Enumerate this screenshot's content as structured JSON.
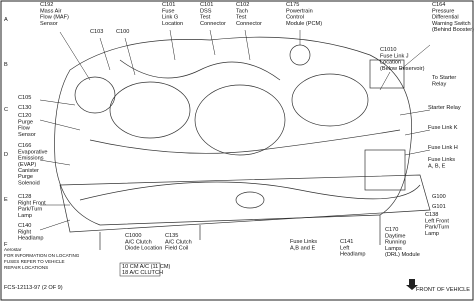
{
  "labels": [
    {
      "lines": [
        "C192",
        "Mass Air",
        "Flow (MAF)",
        "Sensor"
      ]
    },
    {
      "lines": [
        "C103"
      ]
    },
    {
      "lines": [
        "C100"
      ]
    },
    {
      "lines": [
        "C101",
        "Fuse",
        "Link G",
        "Location"
      ]
    },
    {
      "lines": [
        "C101",
        "DSS",
        "Test",
        "Connector"
      ]
    },
    {
      "lines": [
        "C102",
        "Tach",
        "Test",
        "Connector"
      ]
    },
    {
      "lines": [
        "C175",
        "Powertrain",
        "Control",
        "Module (PCM)"
      ]
    },
    {
      "lines": [
        "C164",
        "Pressure",
        "Differential",
        "Warning Switch",
        "(Behind Booster)"
      ]
    },
    {
      "lines": [
        "C1010",
        "Fuse Link J",
        "Location",
        "(Below Reservoir)"
      ]
    },
    {
      "lines": [
        "To Starter",
        "Relay"
      ]
    },
    {
      "lines": [
        "Starter Relay"
      ]
    },
    {
      "lines": [
        "Fuse Link K"
      ]
    },
    {
      "lines": [
        "Fuse Link H"
      ]
    },
    {
      "lines": [
        "Fuse Links",
        "A, B, E"
      ]
    },
    {
      "lines": [
        "G100"
      ]
    },
    {
      "lines": [
        "G101"
      ]
    },
    {
      "lines": [
        "C105"
      ]
    },
    {
      "lines": [
        "C130"
      ]
    },
    {
      "lines": [
        "C120",
        "Purge",
        "Flow",
        "Sensor"
      ]
    },
    {
      "lines": [
        "C166",
        "Evaporative",
        "Emissions",
        "(EVAP)",
        "Canister",
        "Purge",
        "Solenoid"
      ]
    },
    {
      "lines": [
        "C128",
        "Right Front",
        "Park/Turn",
        "Lamp"
      ]
    },
    {
      "lines": [
        "C140",
        "Right",
        "Headlamp"
      ]
    },
    {
      "lines": [
        "C1000",
        "A/C Clutch",
        "Diode Location"
      ]
    },
    {
      "lines": [
        "C135",
        "A/C Clutch",
        "Field Coil"
      ]
    },
    {
      "lines": [
        "Fuse Links",
        "A,B and E"
      ]
    },
    {
      "lines": [
        "C141",
        "Left",
        "Headlamp"
      ]
    },
    {
      "lines": [
        "C170",
        "Daytime",
        "Running",
        "Lamps",
        "(DRL) Module"
      ]
    },
    {
      "lines": [
        "C138",
        "Left Front",
        "Park/Turn",
        "Lamp"
      ]
    }
  ],
  "boxes": [
    {
      "lines": [
        "10 CM A/C (11 CM)",
        "18 A/C CLUTCH"
      ]
    }
  ],
  "grid_letters": [
    "A",
    "B",
    "C",
    "D",
    "E",
    "F"
  ],
  "footer": {
    "note": [
      "Aerostar",
      "FOR INFORMATION ON LOCATING",
      "FUSES REFER TO VEHICLE",
      "REPAIR LOCATIONS"
    ],
    "code": "FCS-12113-97 (2 OF 9)",
    "front": "FRONT OF VEHICLE"
  }
}
